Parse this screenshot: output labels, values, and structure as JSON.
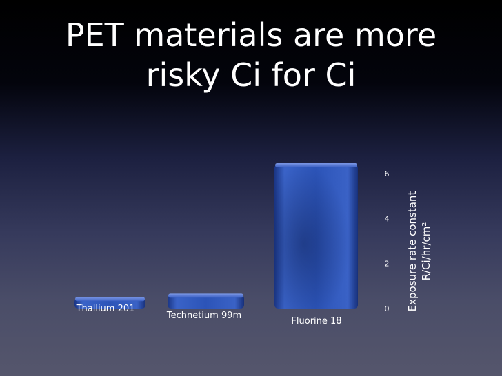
{
  "slide": {
    "title_line1": "PET materials are more",
    "title_line2": "risky Ci for Ci"
  },
  "chart_data": {
    "type": "bar",
    "categories": [
      "Thallium 201",
      "Technetium 99m",
      "Fluorine 18"
    ],
    "values": [
      0.45,
      0.6,
      6.4
    ],
    "ylabel_line1": "Exposure rate constant",
    "ylabel_line2": "R/Ci/hr/cm²",
    "yticks": [
      0,
      2,
      4,
      6
    ],
    "ylim": [
      0,
      6.5
    ],
    "grid": false,
    "bar_color": "#2f55b8",
    "axis_position": "right"
  }
}
